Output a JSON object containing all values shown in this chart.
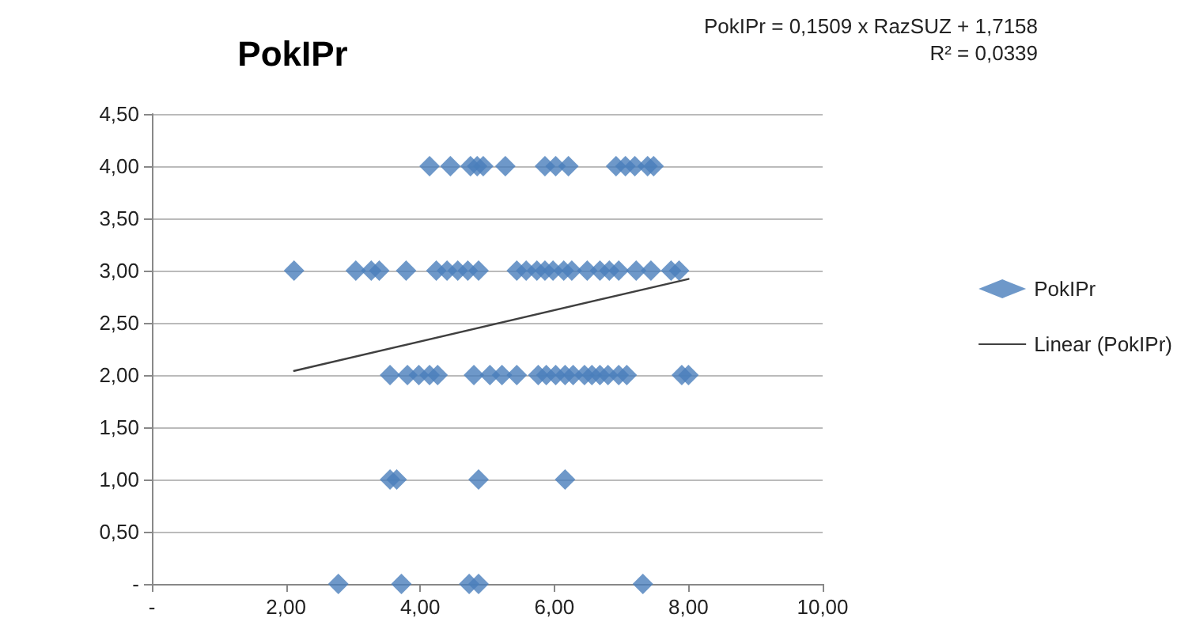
{
  "chart_data": {
    "type": "scatter",
    "title": "PokIPr",
    "annotations": [
      "PokIPr = 0,1509 x RazSUZ + 1,7158",
      "R² = 0,0339"
    ],
    "series": [
      {
        "name": "PokIPr",
        "color": "#4a7ebb",
        "marker": "diamond",
        "x": [
          4.14,
          4.45,
          4.75,
          4.85,
          4.94,
          5.27,
          5.86,
          6.02,
          6.21,
          6.92,
          7.06,
          7.2,
          7.39,
          7.48,
          2.12,
          3.04,
          3.27,
          3.39,
          3.79,
          4.24,
          4.4,
          4.56,
          4.71,
          4.87,
          5.44,
          5.58,
          5.74,
          5.86,
          5.98,
          6.14,
          6.26,
          6.49,
          6.68,
          6.82,
          6.96,
          7.22,
          7.44,
          7.74,
          7.86,
          3.55,
          3.81,
          3.98,
          4.14,
          4.26,
          4.8,
          5.04,
          5.22,
          5.44,
          5.76,
          5.88,
          6.02,
          6.16,
          6.28,
          6.45,
          6.56,
          6.68,
          6.8,
          6.96,
          7.08,
          7.9,
          8.0,
          3.55,
          3.65,
          4.87,
          6.16,
          2.78,
          3.72,
          4.73,
          4.87,
          7.32
        ],
        "values": [
          4,
          4,
          4,
          4,
          4,
          4,
          4,
          4,
          4,
          4,
          4,
          4,
          4,
          4,
          3,
          3,
          3,
          3,
          3,
          3,
          3,
          3,
          3,
          3,
          3,
          3,
          3,
          3,
          3,
          3,
          3,
          3,
          3,
          3,
          3,
          3,
          3,
          3,
          3,
          2,
          2,
          2,
          2,
          2,
          2,
          2,
          2,
          2,
          2,
          2,
          2,
          2,
          2,
          2,
          2,
          2,
          2,
          2,
          2,
          2,
          2,
          1,
          1,
          1,
          1,
          0,
          0,
          0,
          0,
          0
        ]
      },
      {
        "name": "Linear (PokIPr)",
        "type": "line",
        "color": "#404040",
        "marker": "none",
        "x": [
          2.12,
          8.0
        ],
        "values": [
          2.04,
          2.92
        ]
      }
    ],
    "xlim": [
      0,
      10
    ],
    "xticks": [
      {
        "value": 0,
        "label": "-"
      },
      {
        "value": 2,
        "label": "2,00"
      },
      {
        "value": 4,
        "label": "4,00"
      },
      {
        "value": 6,
        "label": "6,00"
      },
      {
        "value": 8,
        "label": "8,00"
      },
      {
        "value": 10,
        "label": "10,00"
      }
    ],
    "ylim": [
      0,
      4.5
    ],
    "yticks": [
      {
        "value": 0,
        "label": "-"
      },
      {
        "value": 0.5,
        "label": "0,50"
      },
      {
        "value": 1,
        "label": "1,00"
      },
      {
        "value": 1.5,
        "label": "1,50"
      },
      {
        "value": 2,
        "label": "2,00"
      },
      {
        "value": 2.5,
        "label": "2,50"
      },
      {
        "value": 3,
        "label": "3,00"
      },
      {
        "value": 3.5,
        "label": "3,50"
      },
      {
        "value": 4,
        "label": "4,00"
      },
      {
        "value": 4.5,
        "label": "4,50"
      }
    ],
    "grid": "y",
    "legend": "right"
  }
}
